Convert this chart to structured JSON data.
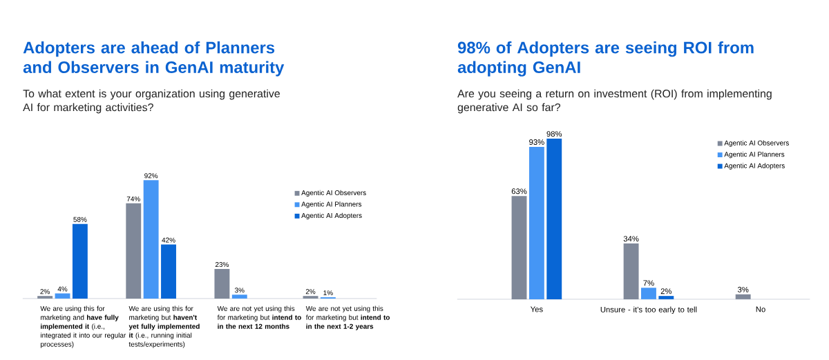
{
  "chart_data": [
    {
      "type": "bar",
      "title": "Adopters are ahead of Planners and Observers in GenAI maturity",
      "subtitle": "To what extent is your organization using generative AI for marketing activities?",
      "categories": [
        "We are using this for marketing and **have fully implemented it** (i.e., integrated it into our regular processes)",
        "We are using this for marketing but **haven't yet fully implemented it** (i.e., running initial tests/experiments)",
        "We are not yet using this for marketing but **intend to in the next 12 months**",
        "We are not yet using this for marketing but **intend to in the next 1-2 years**"
      ],
      "series": [
        {
          "name": "Agentic AI Observers",
          "color": "#7f8899",
          "values": [
            2,
            74,
            23,
            2
          ],
          "value_labels": [
            "2%",
            "74%",
            "23%",
            "2%"
          ]
        },
        {
          "name": "Agentic AI Planners",
          "color": "#4596f5",
          "values": [
            4,
            92,
            3,
            1
          ],
          "value_labels": [
            "4%",
            "92%",
            "3%",
            "1%"
          ]
        },
        {
          "name": "Agentic AI Adopters",
          "color": "#0866d5",
          "values": [
            58,
            42,
            null,
            null
          ],
          "value_labels": [
            "58%",
            "42%",
            null,
            null
          ]
        }
      ],
      "legend": "top right"
    },
    {
      "type": "bar",
      "title": "98% of Adopters are seeing ROI from adopting GenAI",
      "subtitle": "Are you seeing a return on investment (ROI) from implementing generative AI so far?",
      "categories": [
        "Yes",
        "Unsure - it’s too early to tell",
        "No"
      ],
      "series": [
        {
          "name": "Agentic AI Observers",
          "color": "#7f8899",
          "values": [
            63,
            34,
            3
          ],
          "value_labels": [
            "63%",
            "34%",
            "3%"
          ]
        },
        {
          "name": "Agentic AI Planners",
          "color": "#4596f5",
          "values": [
            93,
            7,
            null
          ],
          "value_labels": [
            "93%",
            "7%",
            null
          ]
        },
        {
          "name": "Agentic AI Adopters",
          "color": "#0866d5",
          "values": [
            98,
            2,
            null
          ],
          "value_labels": [
            "98%",
            "2%",
            null
          ]
        }
      ],
      "legend": "top right"
    }
  ]
}
